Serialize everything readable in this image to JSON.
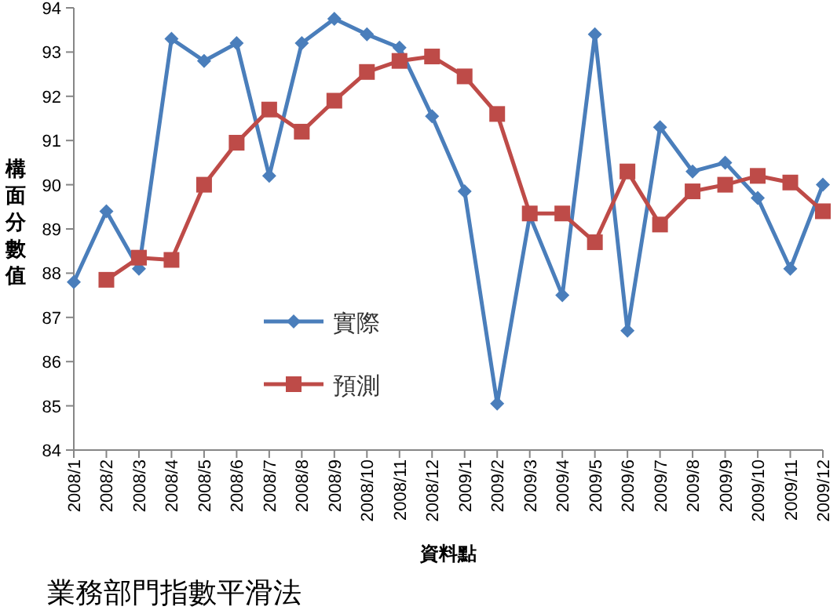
{
  "chart_data": {
    "type": "line",
    "ylabel": "構面分數值",
    "xlabel": "資料點",
    "categories": [
      "2008/1",
      "2008/2",
      "2008/3",
      "2008/4",
      "2008/5",
      "2008/6",
      "2008/7",
      "2008/8",
      "2008/9",
      "2008/10",
      "2008/11",
      "2008/12",
      "2009/1",
      "2009/2",
      "2009/3",
      "2009/4",
      "2009/5",
      "2009/6",
      "2009/7",
      "2009/8",
      "2009/9",
      "2009/10",
      "2009/11",
      "2009/12"
    ],
    "series": [
      {
        "name": "實際",
        "color": "#4a7ebb",
        "marker": "diamond",
        "values": [
          87.8,
          89.4,
          88.1,
          93.3,
          92.8,
          93.2,
          90.2,
          93.2,
          93.75,
          93.4,
          93.1,
          91.55,
          89.85,
          85.05,
          89.3,
          87.5,
          93.4,
          86.7,
          91.3,
          90.3,
          90.5,
          89.7,
          88.1,
          90.0
        ]
      },
      {
        "name": "預測",
        "color": "#be4b48",
        "marker": "square",
        "values": [
          null,
          87.85,
          88.35,
          88.3,
          90.0,
          90.95,
          91.7,
          91.2,
          91.9,
          92.55,
          92.8,
          92.9,
          92.45,
          91.6,
          89.35,
          89.35,
          88.7,
          90.3,
          89.1,
          89.85,
          90.0,
          90.2,
          90.05,
          89.4
        ]
      }
    ],
    "ylim": [
      84,
      94
    ],
    "yticks": [
      84,
      85,
      86,
      87,
      88,
      89,
      90,
      91,
      92,
      93,
      94
    ],
    "grid": false,
    "legend": "bottom left",
    "annotations": [
      "業務部門指數平滑法"
    ]
  }
}
